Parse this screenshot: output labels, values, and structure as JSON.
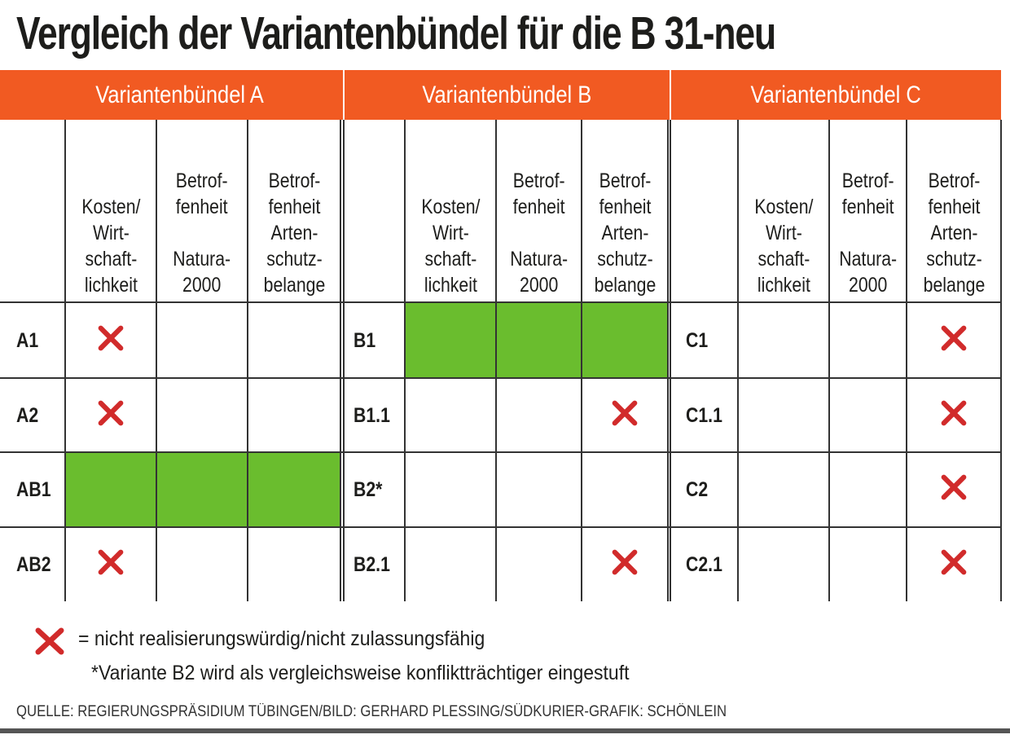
{
  "title": "Vergleich der Variantenbündel für die B 31-neu",
  "colors": {
    "header_orange": "#f15a22",
    "green": "#6abd2e",
    "cross_red": "#d12b2b"
  },
  "groups": [
    {
      "title": "Variantenbündel A"
    },
    {
      "title": "Variantenbündel B"
    },
    {
      "title": "Variantenbündel C"
    }
  ],
  "column_headers": {
    "kosten": "Kosten/\nWirt-\nschaft-\nlichkeit",
    "natura": "Betrof-\nfenheit\n\nNatura-\n2000",
    "arten": "Betrof-\nfenheit\nArten-\nschutz-\nbelange"
  },
  "rows": {
    "A": [
      {
        "label": "A1",
        "kosten": "x",
        "natura": "",
        "arten": ""
      },
      {
        "label": "A2",
        "kosten": "x",
        "natura": "",
        "arten": ""
      },
      {
        "label": "AB1",
        "kosten": "green",
        "natura": "green",
        "arten": "green"
      },
      {
        "label": "AB2",
        "kosten": "x",
        "natura": "",
        "arten": ""
      }
    ],
    "B": [
      {
        "label": "B1",
        "kosten": "green",
        "natura": "green",
        "arten": "green"
      },
      {
        "label": "B1.1",
        "kosten": "",
        "natura": "",
        "arten": "x"
      },
      {
        "label": "B2*",
        "kosten": "",
        "natura": "",
        "arten": ""
      },
      {
        "label": "B2.1",
        "kosten": "",
        "natura": "",
        "arten": "x"
      }
    ],
    "C": [
      {
        "label": "C1",
        "kosten": "",
        "natura": "",
        "arten": "x"
      },
      {
        "label": "C1.1",
        "kosten": "",
        "natura": "",
        "arten": "x"
      },
      {
        "label": "C2",
        "kosten": "",
        "natura": "",
        "arten": "x"
      },
      {
        "label": "C2.1",
        "kosten": "",
        "natura": "",
        "arten": "x"
      }
    ]
  },
  "legend": {
    "cross_icon": "red-x-icon",
    "cross_text": "= nicht realisierungswürdig/nicht zulassungsfähig",
    "footnote": "*Variante B2 wird als vergleichsweise konfliktträchtiger eingestuft"
  },
  "source": "QUELLE: REGIERUNGSPRÄSIDIUM TÜBINGEN/BILD: GERHARD PLESSING/SÜDKURIER-GRAFIK: SCHÖNLEIN"
}
